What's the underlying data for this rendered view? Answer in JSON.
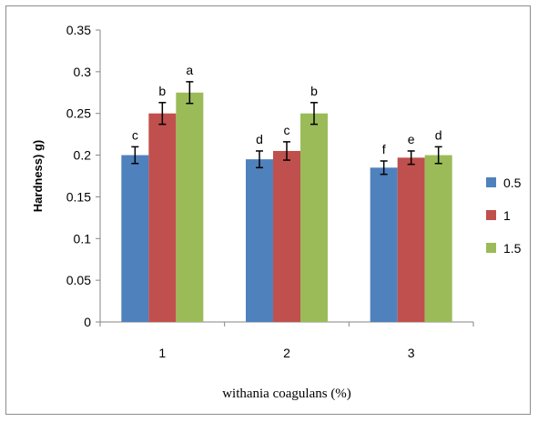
{
  "chart_data": {
    "type": "bar",
    "categories": [
      "1",
      "2",
      "3"
    ],
    "series": [
      {
        "name": "0.5",
        "color": "#4F81BD",
        "values": [
          0.2,
          0.195,
          0.185
        ],
        "errors": [
          0.01,
          0.01,
          0.008
        ],
        "labels": [
          "c",
          "d",
          "f"
        ]
      },
      {
        "name": "1",
        "color": "#C0504D",
        "values": [
          0.25,
          0.205,
          0.197
        ],
        "errors": [
          0.013,
          0.011,
          0.008
        ],
        "labels": [
          "b",
          "c",
          "e"
        ]
      },
      {
        "name": "1.5",
        "color": "#9BBB59",
        "values": [
          0.275,
          0.25,
          0.2
        ],
        "errors": [
          0.013,
          0.013,
          0.01
        ],
        "labels": [
          "a",
          "b",
          "d"
        ]
      }
    ],
    "title": "",
    "xlabel": "withania coagulans (%)",
    "ylabel": "Hardness) g)",
    "ylim": [
      0,
      0.35
    ],
    "yticks": [
      "0",
      "0.05",
      "0.1",
      "0.15",
      "0.2",
      "0.25",
      "0.3",
      "0.35"
    ],
    "grid": false,
    "legend": "right"
  }
}
